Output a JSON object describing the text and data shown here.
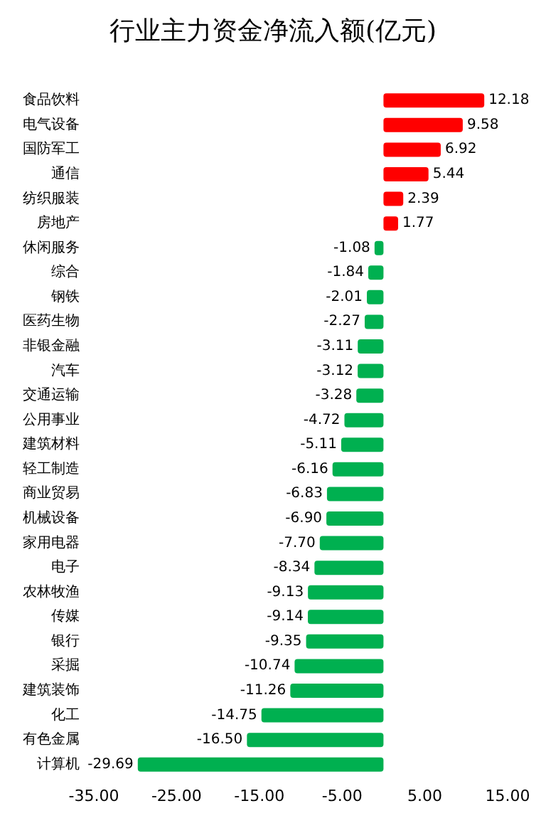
{
  "chart_data": {
    "type": "bar",
    "orientation": "horizontal",
    "title": "行业主力资金净流入额(亿元)",
    "categories": [
      "食品饮料",
      "电气设备",
      "国防军工",
      "通信",
      "纺织服装",
      "房地产",
      "休闲服务",
      "综合",
      "钢铁",
      "医药生物",
      "非银金融",
      "汽车",
      "交通运输",
      "公用事业",
      "建筑材料",
      "轻工制造",
      "商业贸易",
      "机械设备",
      "家用电器",
      "电子",
      "农林牧渔",
      "传媒",
      "银行",
      "采掘",
      "建筑装饰",
      "化工",
      "有色金属",
      "计算机"
    ],
    "values": [
      12.18,
      9.58,
      6.92,
      5.44,
      2.39,
      1.77,
      -1.08,
      -1.84,
      -2.01,
      -2.27,
      -3.11,
      -3.12,
      -3.28,
      -4.72,
      -5.11,
      -6.16,
      -6.83,
      -6.9,
      -7.7,
      -8.34,
      -9.13,
      -9.14,
      -9.35,
      -10.74,
      -11.26,
      -14.75,
      -16.5,
      -29.69
    ],
    "value_labels": [
      "12.18",
      "9.58",
      "6.92",
      "5.44",
      "2.39",
      "1.77",
      "-1.08",
      "-1.84",
      "-2.01",
      "-2.27",
      "-3.11",
      "-3.12",
      "-3.28",
      "-4.72",
      "-5.11",
      "-6.16",
      "-6.83",
      "-6.90",
      "-7.70",
      "-8.34",
      "-9.13",
      "-9.14",
      "-9.35",
      "-10.74",
      "-11.26",
      "-14.75",
      "-16.50",
      "-29.69"
    ],
    "colors": [
      "#ff0000",
      "#ff0000",
      "#ff0000",
      "#ff0000",
      "#ff0000",
      "#ff0000",
      "#00b050",
      "#00b050",
      "#00b050",
      "#00b050",
      "#00b050",
      "#00b050",
      "#00b050",
      "#00b050",
      "#00b050",
      "#00b050",
      "#00b050",
      "#00b050",
      "#00b050",
      "#00b050",
      "#00b050",
      "#00b050",
      "#00b050",
      "#00b050",
      "#00b050",
      "#00b050",
      "#00b050",
      "#00b050"
    ],
    "xlim": [
      -35,
      15
    ],
    "xticks": [
      {
        "value": -35,
        "label": "-35.00"
      },
      {
        "value": -25,
        "label": "-25.00"
      },
      {
        "value": -15,
        "label": "-15.00"
      },
      {
        "value": -5,
        "label": "-5.00"
      },
      {
        "value": 5,
        "label": "5.00"
      },
      {
        "value": 15,
        "label": "15.00"
      }
    ],
    "grid": false
  }
}
